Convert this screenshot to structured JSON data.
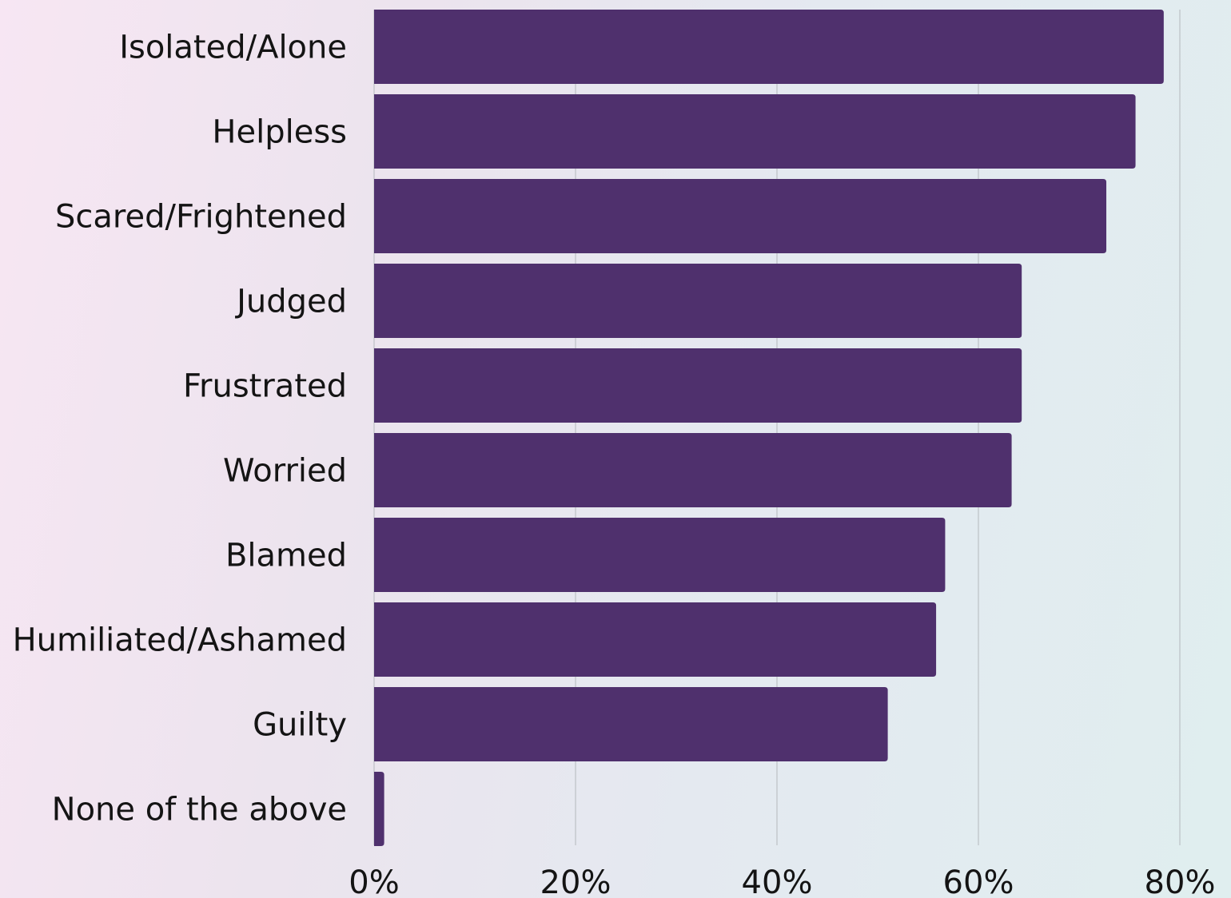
{
  "chart_data": {
    "type": "bar",
    "orientation": "horizontal",
    "categories": [
      "Isolated/Alone",
      "Helpless",
      "Scared/Frightened",
      "Judged",
      "Frustrated",
      "Worried",
      "Blamed",
      "Humiliated/Ashamed",
      "Guilty",
      "None of the above"
    ],
    "values": [
      78.4,
      75.6,
      72.7,
      64.3,
      64.3,
      63.3,
      56.7,
      55.8,
      51.0,
      1.0
    ],
    "xlim": [
      0,
      80
    ],
    "x_ticks": [
      "0%",
      "20%",
      "40%",
      "60%",
      "80%"
    ],
    "x_tick_values": [
      0,
      20,
      40,
      60,
      80
    ],
    "grid": true,
    "bar_color": "#4f306d"
  }
}
